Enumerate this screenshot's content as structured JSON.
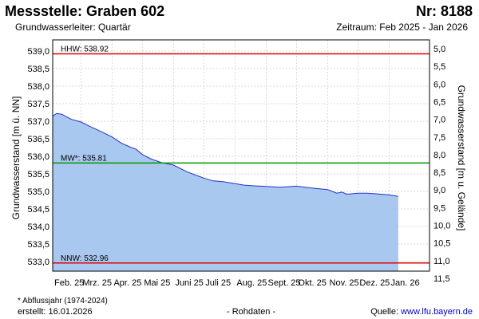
{
  "header": {
    "title": "Messstelle: Graben 602",
    "number": "Nr: 8188",
    "subtitle": "Grundwasserleiter: Quartär",
    "period": "Zeitraum: Feb 2025 - Jan 2026"
  },
  "footer": {
    "note": "* Abflussjahr (1974-2024)",
    "created": "erstellt:  16.01.2026",
    "rawdata": "- Rohdaten -",
    "source_prefix": "Quelle: ",
    "source_link": "www.lfu.bayern.de"
  },
  "chart_data": {
    "type": "area",
    "ylabel": "Grundwasserstand [m ü. NN]",
    "ylabel_right": "Grundwasserstand [m u. Gelände]",
    "ylim": [
      532.75,
      539.0
    ],
    "y_ticks": [
      "539,0",
      "538,5",
      "538,0",
      "537,5",
      "537,0",
      "536,5",
      "536,0",
      "535,5",
      "535,0",
      "534,5",
      "534,0",
      "533,5",
      "533,0"
    ],
    "y_ticks_right": [
      "5,0",
      "5,5",
      "6,0",
      "6,5",
      "7,0",
      "7,5",
      "8,0",
      "8,5",
      "9,0",
      "9,5",
      "10,0",
      "10,5",
      "11,0",
      "11,5"
    ],
    "month_ticks": [
      "Feb. 25",
      "Mrz. 25",
      "Apr. 25",
      "Mai 25",
      "Juni 25",
      "Juli 25",
      "Aug. 25",
      "Sept. 25",
      "Okt. 25",
      "Nov. 25",
      "Dez. 25",
      "Jan. 26"
    ],
    "grid": true,
    "fill_color": "#a9c8ef",
    "line_color": "#2233cc",
    "reference_lines": [
      {
        "label": "HHW: 538.92",
        "value": 538.92,
        "color": "#e00000"
      },
      {
        "label": "MW*: 535.81",
        "value": 535.81,
        "color": "#009900"
      },
      {
        "label": "NNW: 532.96",
        "value": 532.96,
        "color": "#e00000"
      }
    ],
    "series": [
      {
        "x": [
          "2025-02-01",
          "2025-02-05",
          "2025-02-10",
          "2025-02-15",
          "2025-02-20",
          "2025-03-01",
          "2025-03-10",
          "2025-03-20",
          "2025-04-01",
          "2025-04-10",
          "2025-04-20",
          "2025-04-25",
          "2025-05-01",
          "2025-05-10",
          "2025-05-20",
          "2025-06-01",
          "2025-06-15",
          "2025-07-01",
          "2025-07-10",
          "2025-07-20",
          "2025-08-01",
          "2025-08-10",
          "2025-08-20",
          "2025-09-01",
          "2025-09-15",
          "2025-10-01",
          "2025-10-15",
          "2025-11-01",
          "2025-11-10",
          "2025-11-15",
          "2025-11-20",
          "2025-12-01",
          "2025-12-10",
          "2025-12-20",
          "2026-01-01",
          "2026-01-10"
        ],
        "values": [
          537.15,
          537.22,
          537.2,
          537.12,
          537.05,
          536.98,
          536.85,
          536.72,
          536.55,
          536.38,
          536.25,
          536.2,
          536.05,
          535.92,
          535.82,
          535.75,
          535.55,
          535.38,
          535.3,
          535.28,
          535.22,
          535.18,
          535.16,
          535.14,
          535.12,
          535.15,
          535.1,
          535.05,
          534.95,
          534.98,
          534.92,
          534.95,
          534.95,
          534.93,
          534.9,
          534.86
        ]
      }
    ]
  }
}
